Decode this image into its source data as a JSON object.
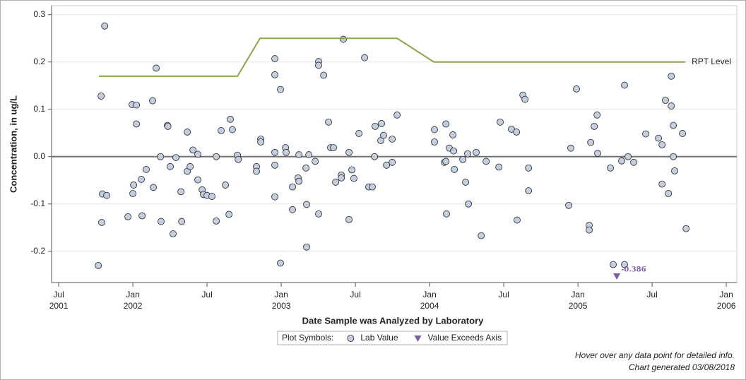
{
  "chart_data": {
    "type": "scatter",
    "x_label": "Date Sample was Analyzed by Laboratory",
    "y_label": "Concentration, in ug/L",
    "xlim": [
      2001.452,
      2006.071
    ],
    "ylim": [
      -0.266,
      0.319
    ],
    "xticks": [
      {
        "value": 2001.5,
        "label": "Jul 2001"
      },
      {
        "value": 2002.0,
        "label": "Jan 2002"
      },
      {
        "value": 2002.5,
        "label": "Jul"
      },
      {
        "value": 2003.0,
        "label": "Jan 2003"
      },
      {
        "value": 2003.5,
        "label": "Jul"
      },
      {
        "value": 2004.0,
        "label": "Jan 2004"
      },
      {
        "value": 2004.5,
        "label": "Jul"
      },
      {
        "value": 2005.0,
        "label": "Jan 2005"
      },
      {
        "value": 2005.5,
        "label": "Jul"
      },
      {
        "value": 2006.0,
        "label": "Jan 2006"
      }
    ],
    "yticks": [
      -0.2,
      -0.1,
      {
        "value": 0,
        "label": "0.0"
      },
      0.1,
      0.2,
      0.3
    ],
    "grid": true,
    "reference_line": 0,
    "legend_title": "Plot Symbols:",
    "series": [
      {
        "name": "Lab Value",
        "kind": "circle",
        "color": "#c3cfe0",
        "in_legend": true,
        "x": [
          2001.767,
          2001.786,
          2001.81,
          2001.79,
          2001.795,
          2001.824,
          2001.967,
          2001.995,
          2002.024,
          2002.005,
          2002.0,
          2002.024,
          2002.057,
          2002.062,
          2002.09,
          2002.133,
          2002.138,
          2002.157,
          2002.186,
          2002.19,
          2002.233,
          2002.236,
          2002.252,
          2002.271,
          2002.29,
          2002.324,
          2002.329,
          2002.367,
          2002.367,
          2002.386,
          2002.405,
          2002.438,
          2002.438,
          2002.467,
          2002.476,
          2002.5,
          2002.533,
          2002.562,
          2002.562,
          2002.595,
          2002.624,
          2002.648,
          2002.657,
          2002.671,
          2002.705,
          2002.71,
          2002.833,
          2002.833,
          2002.862,
          2002.862,
          2002.957,
          2002.957,
          2002.957,
          2002.957,
          2002.957,
          2002.995,
          2002.995,
          2003.029,
          2003.033,
          2003.076,
          2003.076,
          2003.114,
          2003.119,
          2003.119,
          2003.167,
          2003.171,
          2003.171,
          2003.186,
          2003.229,
          2003.252,
          2003.252,
          2003.252,
          2003.286,
          2003.319,
          2003.333,
          2003.352,
          2003.367,
          2003.405,
          2003.405,
          2003.419,
          2003.457,
          2003.457,
          2003.476,
          2003.49,
          2003.524,
          2003.562,
          2003.59,
          2003.614,
          2003.629,
          2003.633,
          2003.671,
          2003.676,
          2003.69,
          2003.71,
          2003.748,
          2003.748,
          2003.781,
          2004.033,
          2004.033,
          2004.1,
          2004.11,
          2004.11,
          2004.114,
          2004.133,
          2004.157,
          2004.162,
          2004.167,
          2004.224,
          2004.243,
          2004.257,
          2004.262,
          2004.314,
          2004.348,
          2004.381,
          2004.467,
          2004.476,
          2004.552,
          2004.586,
          2004.59,
          2004.629,
          2004.643,
          2004.667,
          2004.667,
          2004.938,
          2004.952,
          2004.99,
          2005.076,
          2005.076,
          2005.086,
          2005.11,
          2005.129,
          2005.133,
          2005.219,
          2005.238,
          2005.295,
          2005.314,
          2005.314,
          2005.338,
          2005.376,
          2005.457,
          2005.543,
          2005.567,
          2005.567,
          2005.59,
          2005.61,
          2005.629,
          2005.629,
          2005.643,
          2005.643,
          2005.652,
          2005.705,
          2005.729
        ],
        "values": [
          -0.23,
          0.128,
          0.276,
          -0.139,
          -0.079,
          -0.082,
          -0.127,
          0.11,
          0.109,
          -0.06,
          -0.078,
          0.069,
          -0.048,
          -0.125,
          -0.027,
          0.118,
          -0.065,
          0.187,
          0.0,
          -0.137,
          0.066,
          0.064,
          -0.021,
          -0.163,
          -0.002,
          -0.074,
          -0.137,
          0.052,
          -0.031,
          -0.021,
          0.014,
          0.005,
          -0.049,
          -0.07,
          -0.08,
          -0.082,
          -0.084,
          0.0,
          -0.136,
          0.055,
          -0.06,
          -0.122,
          0.079,
          0.057,
          0.003,
          -0.006,
          -0.021,
          -0.031,
          0.037,
          0.031,
          0.207,
          0.173,
          0.009,
          -0.018,
          -0.085,
          0.142,
          -0.225,
          0.019,
          0.009,
          -0.064,
          -0.112,
          -0.045,
          0.004,
          -0.052,
          -0.024,
          -0.101,
          -0.191,
          0.004,
          -0.01,
          0.201,
          0.193,
          -0.121,
          0.172,
          0.073,
          0.019,
          0.019,
          -0.054,
          -0.039,
          -0.045,
          0.248,
          0.009,
          -0.133,
          -0.028,
          -0.046,
          0.049,
          0.209,
          -0.064,
          -0.064,
          0.0,
          0.064,
          0.034,
          0.07,
          0.045,
          -0.018,
          -0.012,
          0.037,
          0.088,
          0.057,
          0.031,
          -0.012,
          -0.01,
          0.069,
          -0.121,
          0.018,
          0.046,
          0.012,
          -0.027,
          -0.006,
          -0.054,
          0.006,
          -0.1,
          0.009,
          -0.167,
          -0.01,
          -0.022,
          0.073,
          0.058,
          0.052,
          -0.134,
          0.13,
          0.121,
          -0.024,
          -0.072,
          -0.103,
          0.018,
          0.143,
          -0.145,
          -0.155,
          0.03,
          0.064,
          0.088,
          0.007,
          -0.024,
          -0.228,
          -0.009,
          0.151,
          -0.228,
          0.0,
          -0.012,
          0.048,
          0.039,
          0.025,
          -0.058,
          0.119,
          -0.078,
          0.17,
          0.107,
          0.066,
          0.0,
          -0.03,
          0.049,
          -0.152
        ]
      },
      {
        "name": "Value Exceeds Axis",
        "kind": "triangle",
        "color": "#7b5ea7",
        "in_legend": true,
        "x": [
          2005.262
        ],
        "values": [
          -0.386
        ],
        "value_labels": [
          "-0.386"
        ]
      },
      {
        "name": "RPT Level",
        "kind": "line",
        "color": "#8aa64a",
        "in_legend": false,
        "x": [
          2001.771,
          2002.705,
          2002.857,
          2003.781,
          2004.029,
          2005.724
        ],
        "values": [
          0.17,
          0.17,
          0.25,
          0.25,
          0.2,
          0.2
        ]
      }
    ],
    "footnotes": [
      "Hover over any data point for detailed info.",
      "Chart generated 03/08/2018"
    ]
  }
}
